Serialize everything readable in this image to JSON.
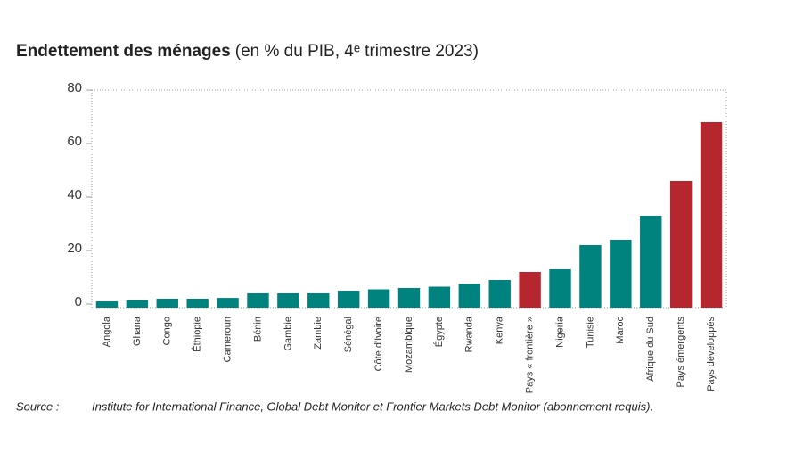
{
  "chart_data": {
    "type": "bar",
    "title": "Endettement des ménages",
    "subtitle": "(en % du PIB, 4ᵉ trimestre 2023)",
    "categories": [
      "Angola",
      "Ghana",
      "Congo",
      "Éthiopie",
      "Cameroun",
      "Bénin",
      "Gambie",
      "Zambie",
      "Sénégal",
      "Côte d'Ivoire",
      "Mozambique",
      "Égypte",
      "Rwanda",
      "Kenya",
      "Pays « frontière »",
      "Nigeria",
      "Tunisie",
      "Maroc",
      "Afrique du Sud",
      "Pays émergents",
      "Pays développés"
    ],
    "values": [
      1,
      1.5,
      2,
      2,
      2.3,
      4,
      4,
      4,
      5,
      5.5,
      6,
      6.5,
      7.5,
      9,
      12,
      13,
      22,
      24,
      33,
      46,
      68
    ],
    "colors": [
      "#00827f",
      "#00827f",
      "#00827f",
      "#00827f",
      "#00827f",
      "#00827f",
      "#00827f",
      "#00827f",
      "#00827f",
      "#00827f",
      "#00827f",
      "#00827f",
      "#00827f",
      "#00827f",
      "#b5262f",
      "#00827f",
      "#00827f",
      "#00827f",
      "#00827f",
      "#b5262f",
      "#b5262f"
    ],
    "ylim": [
      0,
      80
    ],
    "yticks": [
      0,
      20,
      40,
      60,
      80
    ],
    "source_label": "Source :",
    "source": "Institute for International Finance, Global Debt Monitor et Frontier Markets Debt Monitor (abonnement requis)."
  }
}
